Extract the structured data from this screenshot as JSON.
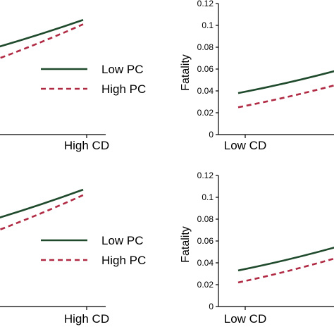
{
  "colors": {
    "low_pc": "#1f4a2c",
    "high_pc": "#b02a44",
    "axis": "#000000"
  },
  "legend": {
    "items": [
      "Low PC",
      "High PC"
    ]
  },
  "chart_data": [
    {
      "panel": "top-left",
      "type": "line",
      "categories": [
        "",
        "High CD"
      ],
      "series": [
        {
          "name": "Low PC",
          "style": "solid",
          "values": [
            0.065,
            0.105
          ]
        },
        {
          "name": "High PC",
          "style": "dashed",
          "values": [
            0.05,
            0.101
          ]
        }
      ],
      "ylim": [
        0,
        0.12
      ],
      "legend_position": "center-right"
    },
    {
      "panel": "top-right",
      "type": "line",
      "categories": [
        "Low CD",
        ""
      ],
      "series": [
        {
          "name": "Low PC",
          "style": "solid",
          "values": [
            0.038,
            0.059
          ]
        },
        {
          "name": "High PC",
          "style": "dashed",
          "values": [
            0.025,
            0.046
          ]
        }
      ],
      "ylabel": "Fatality",
      "ylim": [
        0,
        0.12
      ],
      "yticks": [
        "0",
        "0.02",
        "0.04",
        "0.06",
        "0.08",
        "0.1",
        "0.12"
      ]
    },
    {
      "panel": "bottom-left",
      "type": "line",
      "categories": [
        "",
        "High CD"
      ],
      "series": [
        {
          "name": "Low PC",
          "style": "solid",
          "values": [
            0.065,
            0.107
          ]
        },
        {
          "name": "High PC",
          "style": "dashed",
          "values": [
            0.05,
            0.102
          ]
        }
      ],
      "ylim": [
        0,
        0.12
      ],
      "legend_position": "center-right"
    },
    {
      "panel": "bottom-right",
      "type": "line",
      "categories": [
        "Low CD",
        ""
      ],
      "series": [
        {
          "name": "Low PC",
          "style": "solid",
          "values": [
            0.033,
            0.055
          ]
        },
        {
          "name": "High PC",
          "style": "dashed",
          "values": [
            0.022,
            0.045
          ]
        }
      ],
      "ylabel": "Fatality",
      "ylim": [
        0,
        0.12
      ],
      "yticks": [
        "0",
        "0.02",
        "0.04",
        "0.06",
        "0.08",
        "0.1",
        "0.12"
      ]
    }
  ]
}
